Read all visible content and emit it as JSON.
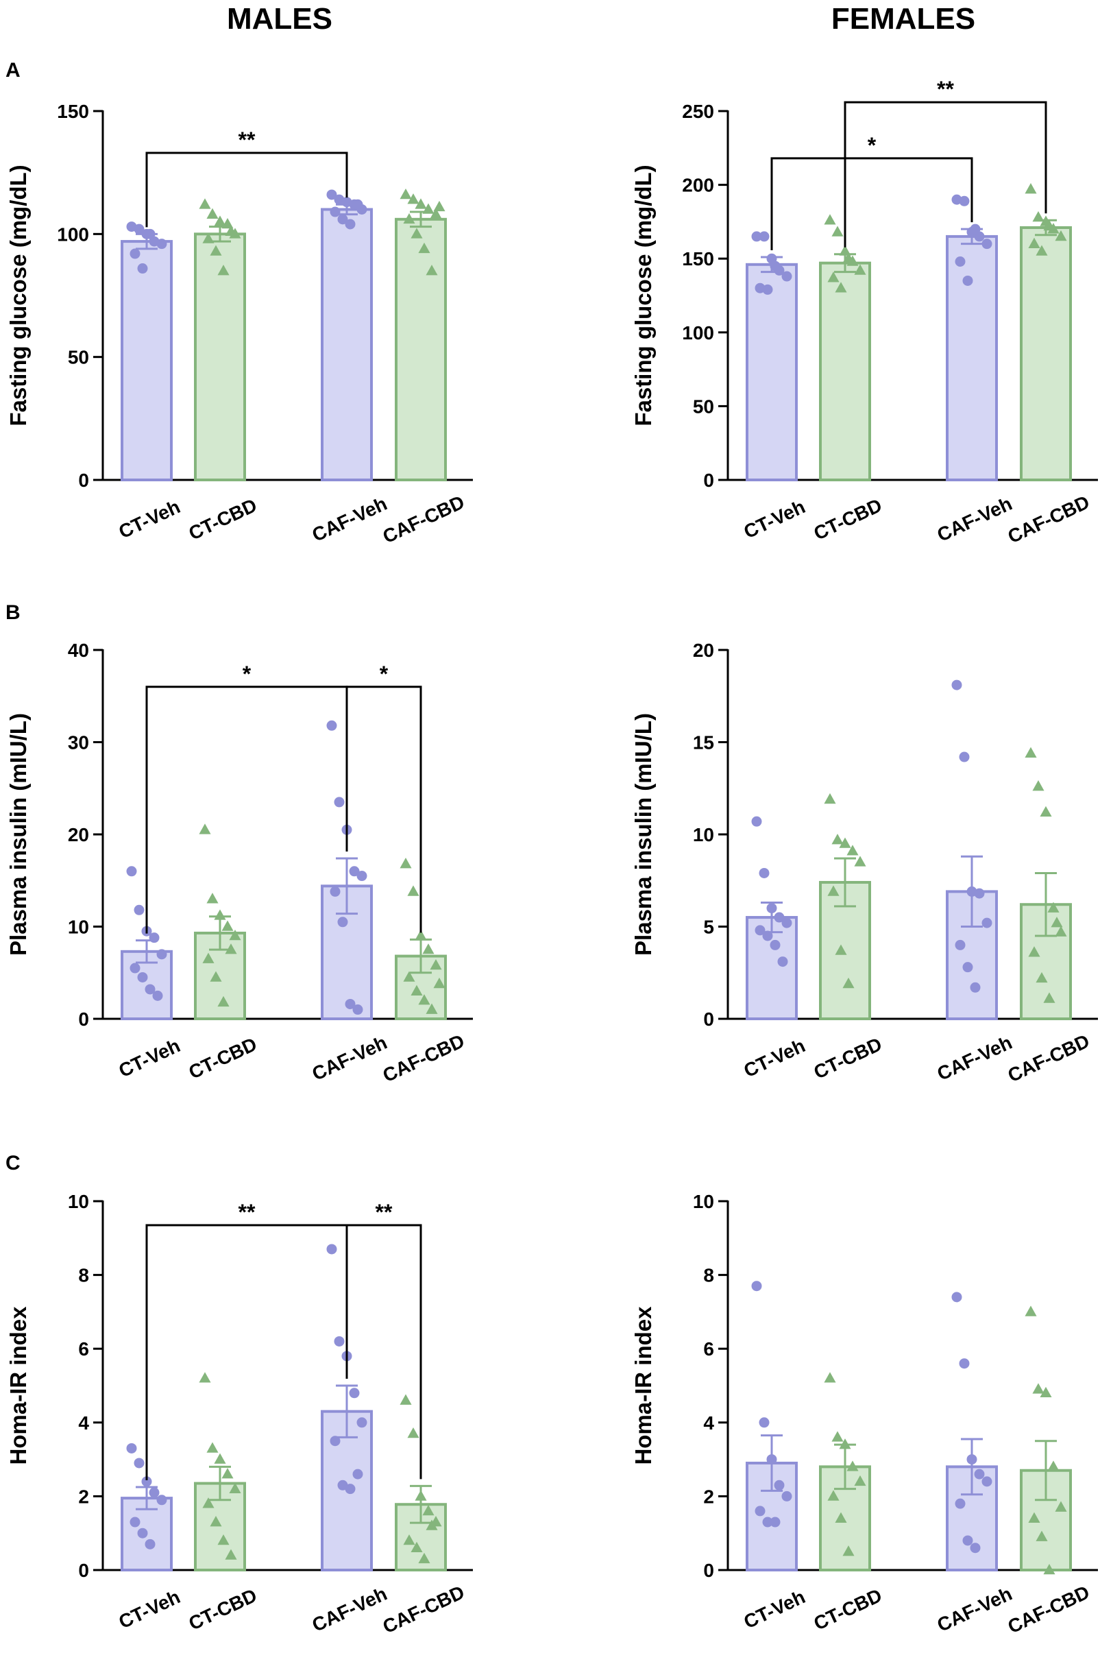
{
  "column_titles": [
    "MALES",
    "FEMALES"
  ],
  "panel_labels": [
    "A",
    "B",
    "C"
  ],
  "colors": {
    "veh_fill": "#d5d6f4",
    "veh_stroke": "#8e8fd6",
    "veh_point": "#8e8fd6",
    "cbd_fill": "#d3e8cf",
    "cbd_stroke": "#84b57c",
    "cbd_point": "#84b57c",
    "ink": "#000000"
  },
  "chart_data": [
    {
      "type": "bar",
      "id": "males-glucose",
      "ylabel": "Fasting glucose (mg/dL)",
      "ylim": [
        0,
        150
      ],
      "yticks": [
        0,
        50,
        100,
        150
      ],
      "categories": [
        "CT-Veh",
        "CT-CBD",
        "CAF-Veh",
        "CAF-CBD"
      ],
      "values": [
        97,
        100,
        110,
        106
      ],
      "sem": [
        3,
        3,
        2,
        3
      ],
      "points": [
        [
          103,
          102,
          100,
          97,
          96,
          92,
          86,
          100
        ],
        [
          112,
          108,
          105,
          104,
          100,
          98,
          93,
          85,
          101
        ],
        [
          116,
          114,
          113,
          112,
          110,
          109,
          106,
          104,
          112
        ],
        [
          116,
          114,
          112,
          110,
          108,
          106,
          100,
          94,
          85,
          111
        ]
      ],
      "significance": [
        {
          "from": 0,
          "to": 2,
          "label": "**",
          "y": 133
        }
      ]
    },
    {
      "type": "bar",
      "id": "females-glucose",
      "ylabel": "Fasting glucose (mg/dL)",
      "ylim": [
        0,
        250
      ],
      "yticks": [
        0,
        50,
        100,
        150,
        200,
        250
      ],
      "categories": [
        "CT-Veh",
        "CT-CBD",
        "CAF-Veh",
        "CAF-CBD"
      ],
      "values": [
        146,
        147,
        165,
        171
      ],
      "sem": [
        5,
        6,
        5,
        5
      ],
      "points": [
        [
          165,
          165,
          150,
          142,
          138,
          130,
          129,
          145
        ],
        [
          176,
          168,
          155,
          148,
          142,
          137,
          130,
          150
        ],
        [
          190,
          189,
          168,
          165,
          160,
          148,
          135,
          170
        ],
        [
          197,
          178,
          175,
          170,
          165,
          160,
          155,
          172
        ]
      ],
      "significance": [
        {
          "from": 0,
          "to": 2,
          "label": "*",
          "y": 218
        },
        {
          "from": 1,
          "to": 3,
          "label": "**",
          "y": 256
        }
      ]
    },
    {
      "type": "bar",
      "id": "males-insulin",
      "ylabel": "Plasma insulin (mIU/L)",
      "ylim": [
        0,
        40
      ],
      "yticks": [
        0,
        10,
        20,
        30,
        40
      ],
      "categories": [
        "CT-Veh",
        "CT-CBD",
        "CAF-Veh",
        "CAF-CBD"
      ],
      "values": [
        7.3,
        9.3,
        14.4,
        6.8
      ],
      "sem": [
        1.2,
        1.8,
        3.0,
        1.8
      ],
      "points": [
        [
          16.0,
          11.8,
          9.5,
          8.8,
          7.0,
          5.5,
          4.5,
          3.2,
          2.5
        ],
        [
          20.5,
          13.0,
          11.2,
          10.0,
          9.0,
          6.5,
          4.5,
          1.8,
          7.5
        ],
        [
          31.8,
          23.5,
          20.5,
          16.0,
          15.5,
          13.8,
          10.5,
          1.6,
          1.0
        ],
        [
          16.8,
          13.8,
          9.0,
          7.5,
          5.8,
          4.5,
          3.0,
          2.0,
          1.0,
          3.8
        ]
      ],
      "significance": [
        {
          "from": 0,
          "to": 2,
          "label": "*",
          "y": 36
        },
        {
          "from": 2,
          "to": 3,
          "label": "*",
          "y": 36
        }
      ]
    },
    {
      "type": "bar",
      "id": "females-insulin",
      "ylabel": "Plasma insulin (mIU/L)",
      "ylim": [
        0,
        20
      ],
      "yticks": [
        0,
        5,
        10,
        15,
        20
      ],
      "categories": [
        "CT-Veh",
        "CT-CBD",
        "CAF-Veh",
        "CAF-CBD"
      ],
      "values": [
        5.5,
        7.4,
        6.9,
        6.2
      ],
      "sem": [
        0.8,
        1.3,
        1.9,
        1.7
      ],
      "points": [
        [
          10.7,
          7.9,
          6.0,
          5.5,
          5.2,
          4.8,
          4.5,
          4.0,
          3.1
        ],
        [
          11.9,
          9.7,
          9.5,
          9.1,
          8.5,
          6.9,
          3.7,
          1.9
        ],
        [
          18.1,
          14.2,
          6.9,
          6.8,
          5.2,
          4.0,
          2.8,
          1.7
        ],
        [
          14.4,
          12.6,
          11.2,
          6.0,
          4.7,
          3.6,
          2.2,
          1.1,
          5.2
        ]
      ],
      "significance": []
    },
    {
      "type": "bar",
      "id": "males-homa",
      "ylabel": "Homa-IR index",
      "ylim": [
        0,
        10
      ],
      "yticks": [
        0,
        2,
        4,
        6,
        8,
        10
      ],
      "categories": [
        "CT-Veh",
        "CT-CBD",
        "CAF-Veh",
        "CAF-CBD"
      ],
      "values": [
        1.95,
        2.35,
        4.3,
        1.78
      ],
      "sem": [
        0.3,
        0.45,
        0.7,
        0.5
      ],
      "points": [
        [
          3.3,
          2.9,
          2.4,
          2.1,
          1.9,
          1.3,
          1.0,
          0.7
        ],
        [
          5.2,
          3.3,
          3.0,
          2.6,
          2.2,
          1.8,
          1.3,
          0.8,
          0.4
        ],
        [
          8.7,
          6.2,
          5.8,
          4.8,
          4.0,
          3.5,
          2.3,
          2.2,
          2.6
        ],
        [
          4.6,
          3.7,
          2.0,
          1.6,
          1.3,
          0.8,
          0.6,
          0.3,
          1.2
        ]
      ],
      "significance": [
        {
          "from": 0,
          "to": 2,
          "label": "**",
          "y": 9.35
        },
        {
          "from": 2,
          "to": 3,
          "label": "**",
          "y": 9.35
        }
      ]
    },
    {
      "type": "bar",
      "id": "females-homa",
      "ylabel": "Homa-IR index",
      "ylim": [
        0,
        10
      ],
      "yticks": [
        0,
        2,
        4,
        6,
        8,
        10
      ],
      "categories": [
        "CT-Veh",
        "CT-CBD",
        "CAF-Veh",
        "CAF-CBD"
      ],
      "values": [
        2.9,
        2.8,
        2.8,
        2.7
      ],
      "sem": [
        0.75,
        0.6,
        0.75,
        0.8
      ],
      "points": [
        [
          7.7,
          4.0,
          3.0,
          2.3,
          2.0,
          1.6,
          1.3,
          1.3
        ],
        [
          5.2,
          3.6,
          3.4,
          2.8,
          2.4,
          2.0,
          1.4,
          0.5
        ],
        [
          7.4,
          5.6,
          3.0,
          2.6,
          2.4,
          1.8,
          0.8,
          0.6
        ],
        [
          7.0,
          4.9,
          4.8,
          2.8,
          1.7,
          1.4,
          0.9,
          0.0
        ]
      ],
      "significance": []
    }
  ]
}
